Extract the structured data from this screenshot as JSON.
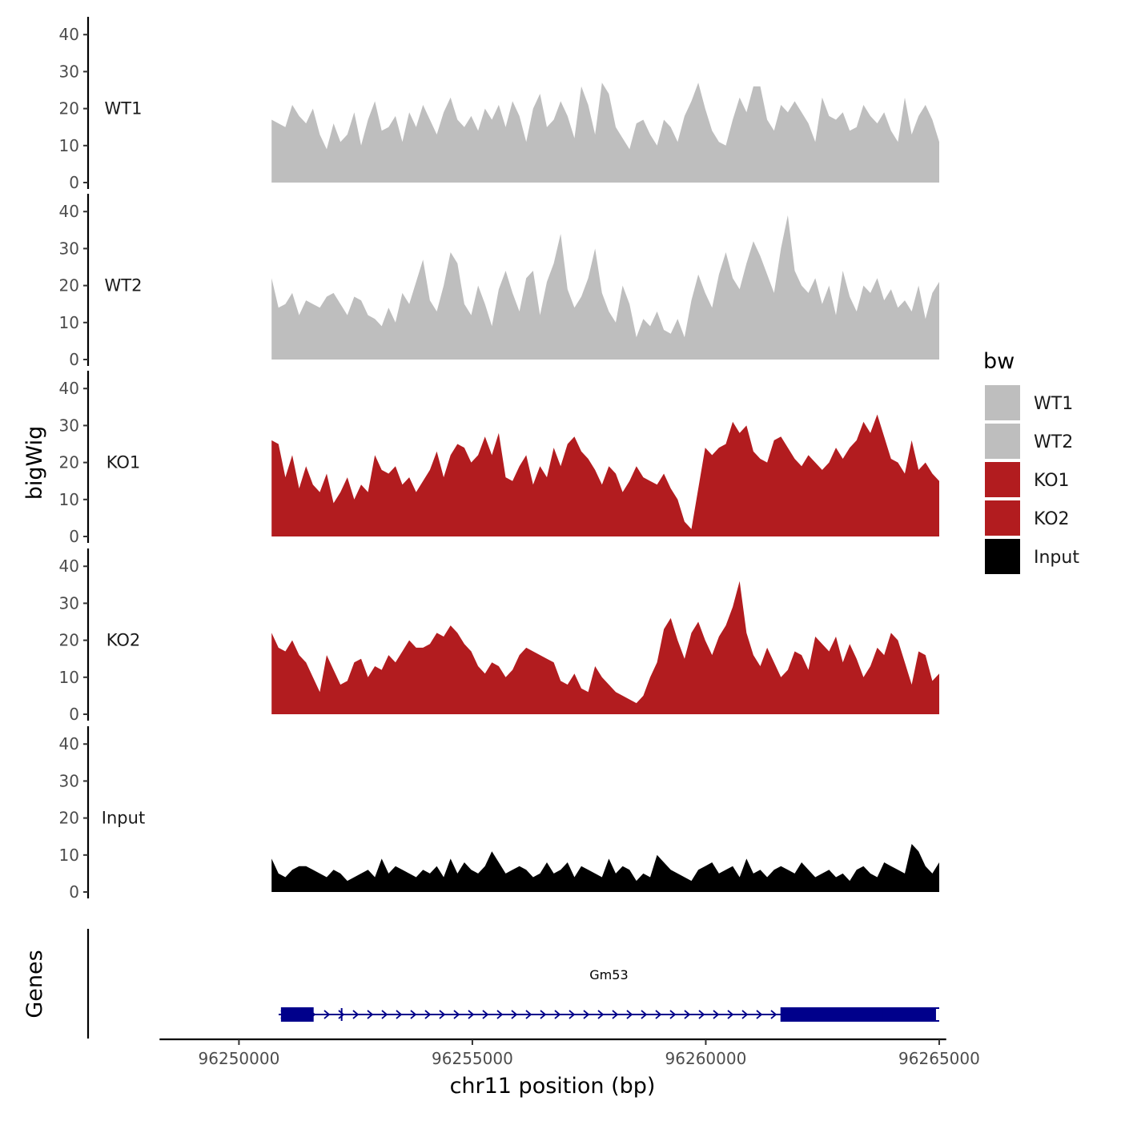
{
  "chart_data": {
    "type": "area",
    "ylabel": "bigWig",
    "xlabel": "chr11 position (bp)",
    "xlim": [
      96248300,
      96265150
    ],
    "x_ticks": [
      96250000,
      96255000,
      96260000,
      96265000
    ],
    "x_tick_labels": [
      "96250000",
      "96255000",
      "96260000",
      "96265000"
    ],
    "ylim": [
      0,
      42
    ],
    "y_ticks": [
      0,
      10,
      20,
      30,
      40
    ],
    "y_tick_labels": [
      "0",
      "10",
      "20",
      "30",
      "40"
    ],
    "data_x_range": [
      96250700,
      96265000
    ],
    "tracks": [
      {
        "name": "WT1",
        "color": "#BEBEBE",
        "values": [
          17,
          16,
          15,
          21,
          18,
          16,
          20,
          13,
          9,
          16,
          11,
          13,
          19,
          10,
          17,
          22,
          14,
          15,
          18,
          11,
          19,
          15,
          21,
          17,
          13,
          19,
          23,
          17,
          15,
          18,
          14,
          20,
          17,
          21,
          15,
          22,
          18,
          11,
          20,
          24,
          15,
          17,
          22,
          18,
          12,
          26,
          21,
          13,
          27,
          24,
          15,
          12,
          9,
          16,
          17,
          13,
          10,
          17,
          15,
          11,
          18,
          22,
          27,
          20,
          14,
          11,
          10,
          17,
          23,
          19,
          26,
          26,
          17,
          14,
          21,
          19,
          22,
          19,
          16,
          11,
          23,
          18,
          17,
          19,
          14,
          15,
          21,
          18,
          16,
          19,
          14,
          11,
          23,
          13,
          18,
          21,
          17,
          11
        ]
      },
      {
        "name": "WT2",
        "color": "#BEBEBE",
        "values": [
          22,
          14,
          15,
          18,
          12,
          16,
          15,
          14,
          17,
          18,
          15,
          12,
          17,
          16,
          12,
          11,
          9,
          14,
          10,
          18,
          15,
          21,
          27,
          16,
          13,
          20,
          29,
          26,
          15,
          12,
          20,
          15,
          9,
          19,
          24,
          18,
          13,
          22,
          24,
          12,
          21,
          26,
          34,
          19,
          14,
          17,
          22,
          30,
          18,
          13,
          10,
          20,
          15,
          6,
          11,
          9,
          13,
          8,
          7,
          11,
          6,
          16,
          23,
          18,
          14,
          23,
          29,
          22,
          19,
          26,
          32,
          28,
          23,
          18,
          30,
          39,
          24,
          20,
          18,
          22,
          15,
          20,
          12,
          24,
          17,
          13,
          20,
          18,
          22,
          16,
          19,
          14,
          16,
          13,
          20,
          11,
          18,
          21
        ]
      },
      {
        "name": "KO1",
        "color": "#B21C1F",
        "values": [
          26,
          25,
          16,
          22,
          13,
          19,
          14,
          12,
          17,
          9,
          12,
          16,
          10,
          14,
          12,
          22,
          18,
          17,
          19,
          14,
          16,
          12,
          15,
          18,
          23,
          16,
          22,
          25,
          24,
          20,
          22,
          27,
          22,
          28,
          16,
          15,
          19,
          22,
          14,
          19,
          16,
          24,
          19,
          25,
          27,
          23,
          21,
          18,
          14,
          19,
          17,
          12,
          15,
          19,
          16,
          15,
          14,
          17,
          13,
          10,
          4,
          2,
          13,
          24,
          22,
          24,
          25,
          31,
          28,
          30,
          23,
          21,
          20,
          26,
          27,
          24,
          21,
          19,
          22,
          20,
          18,
          20,
          24,
          21,
          24,
          26,
          31,
          28,
          33,
          27,
          21,
          20,
          17,
          26,
          18,
          20,
          17,
          15
        ]
      },
      {
        "name": "KO2",
        "color": "#B21C1F",
        "values": [
          22,
          18,
          17,
          20,
          16,
          14,
          10,
          6,
          16,
          12,
          8,
          9,
          14,
          15,
          10,
          13,
          12,
          16,
          14,
          17,
          20,
          18,
          18,
          19,
          22,
          21,
          24,
          22,
          19,
          17,
          13,
          11,
          14,
          13,
          10,
          12,
          16,
          18,
          17,
          16,
          15,
          14,
          9,
          8,
          11,
          7,
          6,
          13,
          10,
          8,
          6,
          5,
          4,
          3,
          5,
          10,
          14,
          23,
          26,
          20,
          15,
          22,
          25,
          20,
          16,
          21,
          24,
          29,
          36,
          22,
          16,
          13,
          18,
          14,
          10,
          12,
          17,
          16,
          12,
          21,
          19,
          17,
          21,
          14,
          19,
          15,
          10,
          13,
          18,
          16,
          22,
          20,
          14,
          8,
          17,
          16,
          9,
          11
        ]
      },
      {
        "name": "Input",
        "color": "#000000",
        "values": [
          9,
          5,
          4,
          6,
          7,
          7,
          6,
          5,
          4,
          6,
          5,
          3,
          4,
          5,
          6,
          4,
          9,
          5,
          7,
          6,
          5,
          4,
          6,
          5,
          7,
          4,
          9,
          5,
          8,
          6,
          5,
          7,
          11,
          8,
          5,
          6,
          7,
          6,
          4,
          5,
          8,
          5,
          6,
          8,
          4,
          7,
          6,
          5,
          4,
          9,
          5,
          7,
          6,
          3,
          5,
          4,
          10,
          8,
          6,
          5,
          4,
          3,
          6,
          7,
          8,
          5,
          6,
          7,
          4,
          9,
          5,
          6,
          4,
          6,
          7,
          6,
          5,
          8,
          6,
          4,
          5,
          6,
          4,
          5,
          3,
          6,
          7,
          5,
          4,
          8,
          7,
          6,
          5,
          13,
          11,
          7,
          5,
          8
        ]
      }
    ],
    "genes_track": {
      "label": "Genes",
      "color": "#00008B",
      "gene": {
        "name": "Gm53",
        "strand": "+",
        "start": 96250850,
        "end": 96265000,
        "intron_marks": [
          96252200
        ],
        "exons": [
          {
            "start": 96250900,
            "end": 96251600,
            "type": "cds"
          },
          {
            "start": 96261600,
            "end": 96265000,
            "type": "cds"
          },
          {
            "start": 96263800,
            "end": 96264850,
            "type": "cds"
          }
        ]
      }
    },
    "legend": {
      "title": "bw",
      "position": "right",
      "entries": [
        {
          "label": "WT1",
          "color": "#BEBEBE"
        },
        {
          "label": "WT2",
          "color": "#BEBEBE"
        },
        {
          "label": "KO1",
          "color": "#B21C1F"
        },
        {
          "label": "KO2",
          "color": "#B21C1F"
        },
        {
          "label": "Input",
          "color": "#000000"
        }
      ]
    }
  }
}
